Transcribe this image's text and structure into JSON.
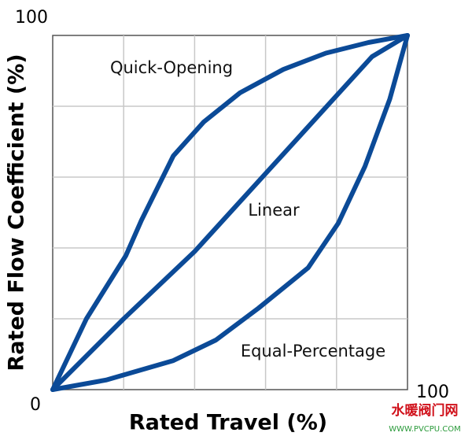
{
  "chart_data": {
    "type": "line",
    "x_label": "Rated Travel (%)",
    "y_label": "Rated Flow Coefficient (%)",
    "xlim": [
      0,
      100
    ],
    "ylim": [
      0,
      100
    ],
    "xticks": [
      100
    ],
    "yticks": [
      0,
      100
    ],
    "xgrid": [
      20,
      40,
      60,
      80
    ],
    "ygrid": [
      20,
      40,
      60,
      80
    ],
    "grid": true,
    "series": [
      {
        "name": "Quick-Opening",
        "color": "#0b4a97",
        "x": [
          0,
          9.5,
          20.6,
          25,
          34,
          42.6,
          52.8,
          65,
          77,
          89,
          100
        ],
        "values": [
          0,
          20,
          37.8,
          47.8,
          66,
          75.6,
          83.8,
          90.4,
          95,
          98,
          100
        ]
      },
      {
        "name": "Linear",
        "color": "#0b4a97",
        "x": [
          0,
          20,
          40,
          60,
          80,
          90,
          100
        ],
        "values": [
          0,
          20,
          39,
          61,
          83,
          94,
          100
        ]
      },
      {
        "name": "Equal-Percentage",
        "color": "#0b4a97",
        "x": [
          0,
          15,
          34,
          46,
          58,
          72,
          80.5,
          88,
          95,
          100
        ],
        "values": [
          0,
          2.7,
          8.2,
          14,
          23,
          34.4,
          47,
          63,
          82,
          100
        ]
      }
    ],
    "watermark": {
      "site": "水暖阀门网",
      "url": "WWW.PVCPU.COM"
    }
  }
}
